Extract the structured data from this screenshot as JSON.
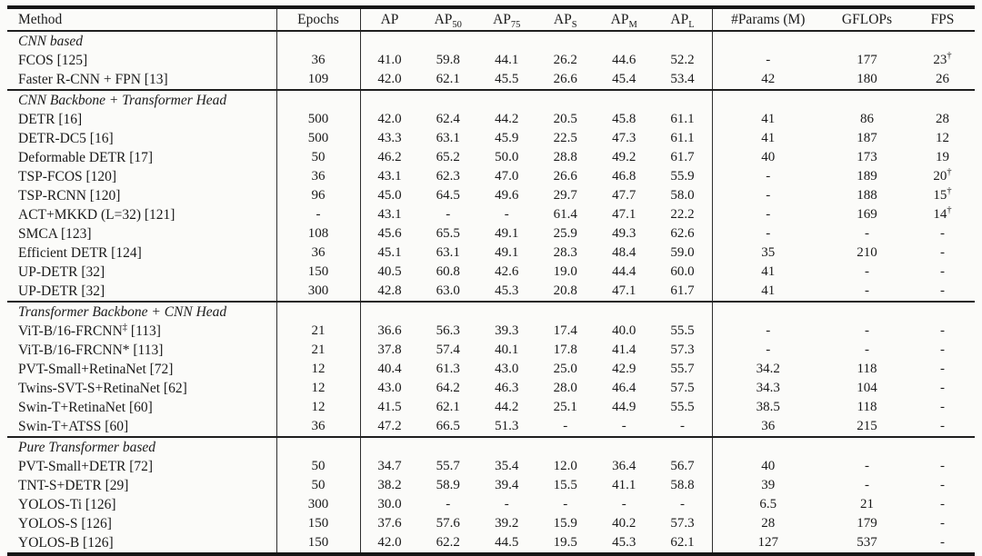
{
  "page": {
    "background": "#fbfbf9",
    "text_color": "#1a1a1a",
    "rule_color": "#1f1f1f"
  },
  "table": {
    "columns": [
      {
        "id": "method",
        "base": "Method",
        "sub": ""
      },
      {
        "id": "epochs",
        "base": "Epochs",
        "sub": ""
      },
      {
        "id": "ap",
        "base": "AP",
        "sub": ""
      },
      {
        "id": "ap50",
        "base": "AP",
        "sub": "50"
      },
      {
        "id": "ap75",
        "base": "AP",
        "sub": "75"
      },
      {
        "id": "aps",
        "base": "AP",
        "sub": "S"
      },
      {
        "id": "apm",
        "base": "AP",
        "sub": "M"
      },
      {
        "id": "apl",
        "base": "AP",
        "sub": "L"
      },
      {
        "id": "params",
        "base": "#Params (M)",
        "sub": ""
      },
      {
        "id": "gflops",
        "base": "GFLOPs",
        "sub": ""
      },
      {
        "id": "fps",
        "base": "FPS",
        "sub": ""
      }
    ],
    "sections": [
      {
        "title": "CNN based",
        "rows": [
          {
            "method": "FCOS [125]",
            "values": [
              "36",
              "41.0",
              "59.8",
              "44.1",
              "26.2",
              "44.6",
              "52.2",
              "-",
              "177",
              "23†"
            ]
          },
          {
            "method": "Faster R-CNN + FPN [13]",
            "values": [
              "109",
              "42.0",
              "62.1",
              "45.5",
              "26.6",
              "45.4",
              "53.4",
              "42",
              "180",
              "26"
            ]
          }
        ]
      },
      {
        "title": "CNN Backbone + Transformer Head",
        "rows": [
          {
            "method": "DETR [16]",
            "values": [
              "500",
              "42.0",
              "62.4",
              "44.2",
              "20.5",
              "45.8",
              "61.1",
              "41",
              "86",
              "28"
            ]
          },
          {
            "method": "DETR-DC5 [16]",
            "values": [
              "500",
              "43.3",
              "63.1",
              "45.9",
              "22.5",
              "47.3",
              "61.1",
              "41",
              "187",
              "12"
            ]
          },
          {
            "method": "Deformable DETR [17]",
            "values": [
              "50",
              "46.2",
              "65.2",
              "50.0",
              "28.8",
              "49.2",
              "61.7",
              "40",
              "173",
              "19"
            ]
          },
          {
            "method": "TSP-FCOS [120]",
            "values": [
              "36",
              "43.1",
              "62.3",
              "47.0",
              "26.6",
              "46.8",
              "55.9",
              "-",
              "189",
              "20†"
            ]
          },
          {
            "method": "TSP-RCNN [120]",
            "values": [
              "96",
              "45.0",
              "64.5",
              "49.6",
              "29.7",
              "47.7",
              "58.0",
              "-",
              "188",
              "15†"
            ]
          },
          {
            "method": "ACT+MKKD (L=32) [121]",
            "values": [
              "-",
              "43.1",
              "-",
              "-",
              "61.4",
              "47.1",
              "22.2",
              "-",
              "169",
              "14†"
            ]
          },
          {
            "method": "SMCA [123]",
            "values": [
              "108",
              "45.6",
              "65.5",
              "49.1",
              "25.9",
              "49.3",
              "62.6",
              "-",
              "-",
              "-"
            ]
          },
          {
            "method": "Efficient DETR [124]",
            "values": [
              "36",
              "45.1",
              "63.1",
              "49.1",
              "28.3",
              "48.4",
              "59.0",
              "35",
              "210",
              "-"
            ]
          },
          {
            "method": "UP-DETR [32]",
            "values": [
              "150",
              "40.5",
              "60.8",
              "42.6",
              "19.0",
              "44.4",
              "60.0",
              "41",
              "-",
              "-"
            ]
          },
          {
            "method": "UP-DETR [32]",
            "values": [
              "300",
              "42.8",
              "63.0",
              "45.3",
              "20.8",
              "47.1",
              "61.7",
              "41",
              "-",
              "-"
            ]
          }
        ]
      },
      {
        "title": "Transformer Backbone + CNN Head",
        "rows": [
          {
            "method": "ViT-B/16-FRCNN‡ [113]",
            "values": [
              "21",
              "36.6",
              "56.3",
              "39.3",
              "17.4",
              "40.0",
              "55.5",
              "-",
              "-",
              "-"
            ]
          },
          {
            "method": "ViT-B/16-FRCNN* [113]",
            "values": [
              "21",
              "37.8",
              "57.4",
              "40.1",
              "17.8",
              "41.4",
              "57.3",
              "-",
              "-",
              "-"
            ]
          },
          {
            "method": "PVT-Small+RetinaNet [72]",
            "values": [
              "12",
              "40.4",
              "61.3",
              "43.0",
              "25.0",
              "42.9",
              "55.7",
              "34.2",
              "118",
              "-"
            ]
          },
          {
            "method": "Twins-SVT-S+RetinaNet [62]",
            "values": [
              "12",
              "43.0",
              "64.2",
              "46.3",
              "28.0",
              "46.4",
              "57.5",
              "34.3",
              "104",
              "-"
            ]
          },
          {
            "method": "Swin-T+RetinaNet [60]",
            "values": [
              "12",
              "41.5",
              "62.1",
              "44.2",
              "25.1",
              "44.9",
              "55.5",
              "38.5",
              "118",
              "-"
            ]
          },
          {
            "method": "Swin-T+ATSS [60]",
            "values": [
              "36",
              "47.2",
              "66.5",
              "51.3",
              "-",
              "-",
              "-",
              "36",
              "215",
              "-"
            ]
          }
        ]
      },
      {
        "title": "Pure Transformer based",
        "rows": [
          {
            "method": "PVT-Small+DETR [72]",
            "values": [
              "50",
              "34.7",
              "55.7",
              "35.4",
              "12.0",
              "36.4",
              "56.7",
              "40",
              "-",
              "-"
            ]
          },
          {
            "method": "TNT-S+DETR [29]",
            "values": [
              "50",
              "38.2",
              "58.9",
              "39.4",
              "15.5",
              "41.1",
              "58.8",
              "39",
              "-",
              "-"
            ]
          },
          {
            "method": "YOLOS-Ti [126]",
            "values": [
              "300",
              "30.0",
              "-",
              "-",
              "-",
              "-",
              "-",
              "6.5",
              "21",
              "-"
            ]
          },
          {
            "method": "YOLOS-S [126]",
            "values": [
              "150",
              "37.6",
              "57.6",
              "39.2",
              "15.9",
              "40.2",
              "57.3",
              "28",
              "179",
              "-"
            ]
          },
          {
            "method": "YOLOS-B [126]",
            "values": [
              "150",
              "42.0",
              "62.2",
              "44.5",
              "19.5",
              "45.3",
              "62.1",
              "127",
              "537",
              "-"
            ]
          }
        ]
      }
    ]
  }
}
